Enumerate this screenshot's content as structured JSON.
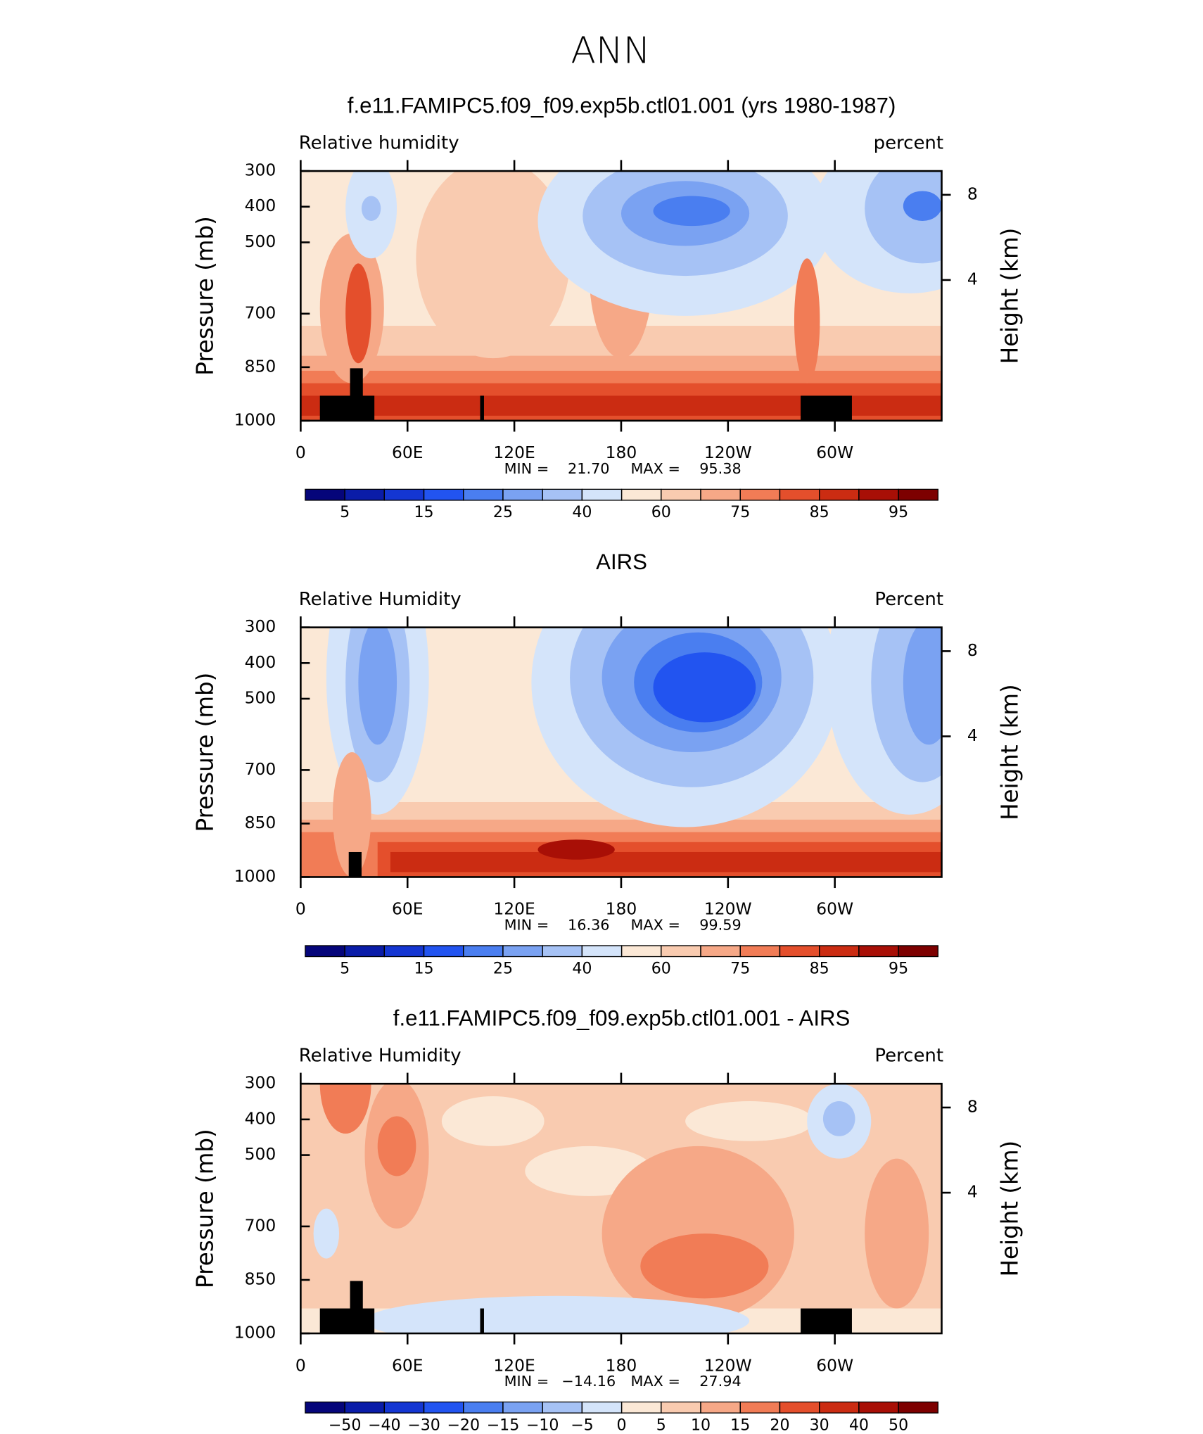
{
  "title": "ANN",
  "chart_data": [
    {
      "type": "contour",
      "title": "f.e11.FAMIPC5.f09_f09.exp5b.ctl01.001 (yrs 1980-1987)",
      "variable": "Relative humidity",
      "units": "percent",
      "ylabel": "Pressure (mb)",
      "y2label": "Height (km)",
      "xlim": [
        0,
        360
      ],
      "xticks": [
        0,
        {
          "value": 60,
          "label": "60E"
        },
        {
          "value": 120,
          "label": "120E"
        },
        180,
        {
          "value": 240,
          "label": "120W"
        },
        {
          "value": 300,
          "label": "60W"
        }
      ],
      "ylim": [
        1000,
        300
      ],
      "yticks": [
        300,
        400,
        500,
        700,
        850,
        1000
      ],
      "y2lim": [
        0,
        9.6
      ],
      "y2ticks": [
        8,
        4
      ],
      "min_text": "MIN =",
      "min": {
        "value": 21.7,
        "label": "21.70"
      },
      "max_text": "MAX =",
      "max": 95.38,
      "colorbar": {
        "levels": [
          5,
          10,
          15,
          20,
          25,
          30,
          40,
          50,
          60,
          70,
          75,
          80,
          85,
          90,
          95
        ],
        "label_step": 2,
        "colors": [
          "#05057a",
          "#0a1ca8",
          "#1436d2",
          "#2254f0",
          "#4a7ef0",
          "#7aa2f2",
          "#a6c2f5",
          "#d4e4fa",
          "#fbe8d6",
          "#f9cbb0",
          "#f6a887",
          "#f17c56",
          "#e44f2c",
          "#cb2c12",
          "#a80f06",
          "#7d0000"
        ]
      }
    },
    {
      "type": "contour",
      "title": "AIRS",
      "variable": "Relative Humidity",
      "units": "Percent",
      "ylabel": "Pressure (mb)",
      "y2label": "Height (km)",
      "xlim": [
        0,
        360
      ],
      "xticks": [
        0,
        {
          "value": 60,
          "label": "60E"
        },
        {
          "value": 120,
          "label": "120E"
        },
        180,
        {
          "value": 240,
          "label": "120W"
        },
        {
          "value": 300,
          "label": "60W"
        }
      ],
      "ylim": [
        1000,
        300
      ],
      "yticks": [
        300,
        400,
        500,
        700,
        850,
        1000
      ],
      "y2lim": [
        0,
        9.6
      ],
      "y2ticks": [
        8,
        4
      ],
      "min_text": "MIN =",
      "min": 16.36,
      "max_text": "MAX =",
      "max": 99.59,
      "colorbar": {
        "levels": [
          5,
          10,
          15,
          20,
          25,
          30,
          40,
          50,
          60,
          70,
          75,
          80,
          85,
          90,
          95
        ],
        "label_step": 2,
        "colors": [
          "#05057a",
          "#0a1ca8",
          "#1436d2",
          "#2254f0",
          "#4a7ef0",
          "#7aa2f2",
          "#a6c2f5",
          "#d4e4fa",
          "#fbe8d6",
          "#f9cbb0",
          "#f6a887",
          "#f17c56",
          "#e44f2c",
          "#cb2c12",
          "#a80f06",
          "#7d0000"
        ]
      }
    },
    {
      "type": "contour",
      "title": "f.e11.FAMIPC5.f09_f09.exp5b.ctl01.001 - AIRS",
      "variable": "Relative Humidity",
      "units": "Percent",
      "ylabel": "Pressure (mb)",
      "y2label": "Height (km)",
      "xlim": [
        0,
        360
      ],
      "xticks": [
        0,
        {
          "value": 60,
          "label": "60E"
        },
        {
          "value": 120,
          "label": "120E"
        },
        180,
        {
          "value": 240,
          "label": "120W"
        },
        {
          "value": 300,
          "label": "60W"
        }
      ],
      "ylim": [
        1000,
        300
      ],
      "yticks": [
        300,
        400,
        500,
        700,
        850,
        1000
      ],
      "y2lim": [
        0,
        9.6
      ],
      "y2ticks": [
        8,
        4
      ],
      "min_text": "MIN =",
      "min": {
        "value": -14.16,
        "label": "−14.16"
      },
      "max_text": "MAX =",
      "max": 27.94,
      "colorbar": {
        "levels": [
          {
            "value": -50,
            "label": "−50"
          },
          {
            "value": -40,
            "label": "−40"
          },
          {
            "value": -30,
            "label": "−30"
          },
          {
            "value": -20,
            "label": "−20"
          },
          {
            "value": -15,
            "label": "−15"
          },
          {
            "value": -10,
            "label": "−10"
          },
          {
            "value": -5,
            "label": "−5"
          },
          0,
          5,
          10,
          15,
          20,
          30,
          40,
          50
        ],
        "label_step": 1,
        "colors": [
          "#05057a",
          "#0a1ca8",
          "#1436d2",
          "#2254f0",
          "#4a7ef0",
          "#7aa2f2",
          "#a6c2f5",
          "#d4e4fa",
          "#fbe8d6",
          "#f9cbb0",
          "#f6a887",
          "#f17c56",
          "#e44f2c",
          "#cb2c12",
          "#a80f06",
          "#7d0000"
        ]
      }
    }
  ]
}
